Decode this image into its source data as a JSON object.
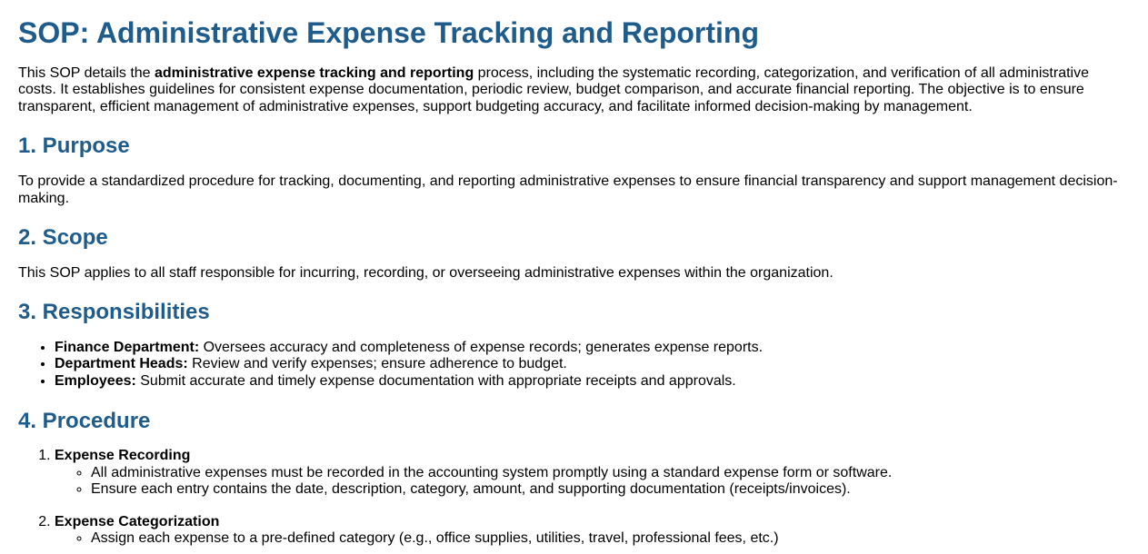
{
  "colors": {
    "heading_blue": "#1f5c8b",
    "body_text": "#000000",
    "background": "#ffffff"
  },
  "doc": {
    "title": "SOP: Administrative Expense Tracking and Reporting",
    "intro": {
      "pre": "This SOP details the ",
      "bold": "administrative expense tracking and reporting",
      "post": " process, including the systematic recording, categorization, and verification of all administrative costs. It establishes guidelines for consistent expense documentation, periodic review, budget comparison, and accurate financial reporting. The objective is to ensure transparent, efficient management of administrative expenses, support budgeting accuracy, and facilitate informed decision-making by management."
    },
    "sections": [
      {
        "heading": "1. Purpose",
        "body": "To provide a standardized procedure for tracking, documenting, and reporting administrative expenses to ensure financial transparency and support management decision-making."
      },
      {
        "heading": "2. Scope",
        "body": "This SOP applies to all staff responsible for incurring, recording, or overseeing administrative expenses within the organization."
      },
      {
        "heading": "3. Responsibilities",
        "items": [
          {
            "label": "Finance Department:",
            "text": " Oversees accuracy and completeness of expense records; generates expense reports."
          },
          {
            "label": "Department Heads:",
            "text": " Review and verify expenses; ensure adherence to budget."
          },
          {
            "label": "Employees:",
            "text": " Submit accurate and timely expense documentation with appropriate receipts and approvals."
          }
        ]
      },
      {
        "heading": "4. Procedure",
        "steps": [
          {
            "title": "Expense Recording",
            "substeps": [
              "All administrative expenses must be recorded in the accounting system promptly using a standard expense form or software.",
              "Ensure each entry contains the date, description, category, amount, and supporting documentation (receipts/invoices)."
            ]
          },
          {
            "title": "Expense Categorization",
            "substeps": [
              "Assign each expense to a pre-defined category (e.g., office supplies, utilities, travel, professional fees, etc.)"
            ]
          }
        ]
      }
    ]
  }
}
